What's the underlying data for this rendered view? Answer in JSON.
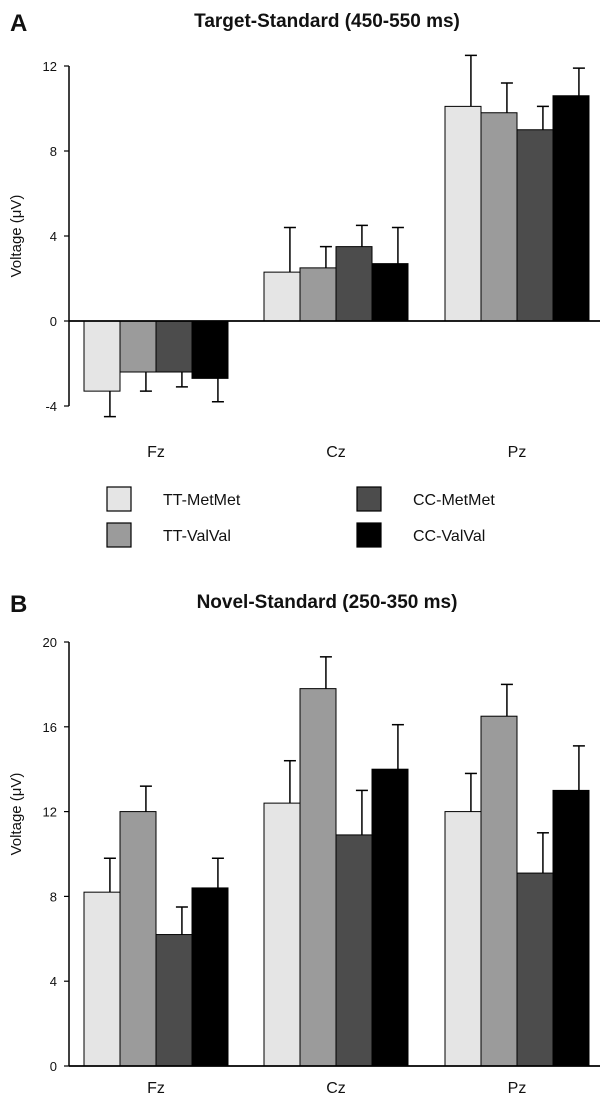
{
  "legend": [
    {
      "label": "TT-MetMet",
      "color": "#e5e5e5"
    },
    {
      "label": "TT-ValVal",
      "color": "#9b9b9b"
    },
    {
      "label": "CC-MetMet",
      "color": "#4c4c4c"
    },
    {
      "label": "CC-ValVal",
      "color": "#000000"
    }
  ],
  "chart_data": [
    {
      "panel_label": "A",
      "type": "bar",
      "title": "Target-Standard (450-550 ms)",
      "ylabel": "Voltage (μV)",
      "ylim": [
        -4,
        12
      ],
      "yticks": [
        "-4",
        "0",
        "4",
        "8",
        "12"
      ],
      "categories": [
        "Fz",
        "Cz",
        "Pz"
      ],
      "series": [
        {
          "name": "TT-MetMet",
          "values": [
            -3.3,
            2.3,
            10.1
          ],
          "errors": [
            1.2,
            2.1,
            2.4
          ]
        },
        {
          "name": "TT-ValVal",
          "values": [
            -2.4,
            2.5,
            9.8
          ],
          "errors": [
            0.9,
            1.0,
            1.4
          ]
        },
        {
          "name": "CC-MetMet",
          "values": [
            -2.4,
            3.5,
            9.0
          ],
          "errors": [
            0.7,
            1.0,
            1.1
          ]
        },
        {
          "name": "CC-ValVal",
          "values": [
            -2.7,
            2.7,
            10.6
          ],
          "errors": [
            1.1,
            1.7,
            1.3
          ]
        }
      ]
    },
    {
      "panel_label": "B",
      "type": "bar",
      "title": "Novel-Standard (250-350 ms)",
      "ylabel": "Voltage (μV)",
      "ylim": [
        0,
        20
      ],
      "yticks": [
        "0",
        "4",
        "8",
        "12",
        "16",
        "20"
      ],
      "categories": [
        "Fz",
        "Cz",
        "Pz"
      ],
      "series": [
        {
          "name": "TT-MetMet",
          "values": [
            8.2,
            12.4,
            12.0
          ],
          "errors": [
            1.6,
            2.0,
            1.8
          ]
        },
        {
          "name": "TT-ValVal",
          "values": [
            12.0,
            17.8,
            16.5
          ],
          "errors": [
            1.2,
            1.5,
            1.5
          ]
        },
        {
          "name": "CC-MetMet",
          "values": [
            6.2,
            10.9,
            9.1
          ],
          "errors": [
            1.3,
            2.1,
            1.9
          ]
        },
        {
          "name": "CC-ValVal",
          "values": [
            8.4,
            14.0,
            13.0
          ],
          "errors": [
            1.4,
            2.1,
            2.1
          ]
        }
      ]
    }
  ]
}
